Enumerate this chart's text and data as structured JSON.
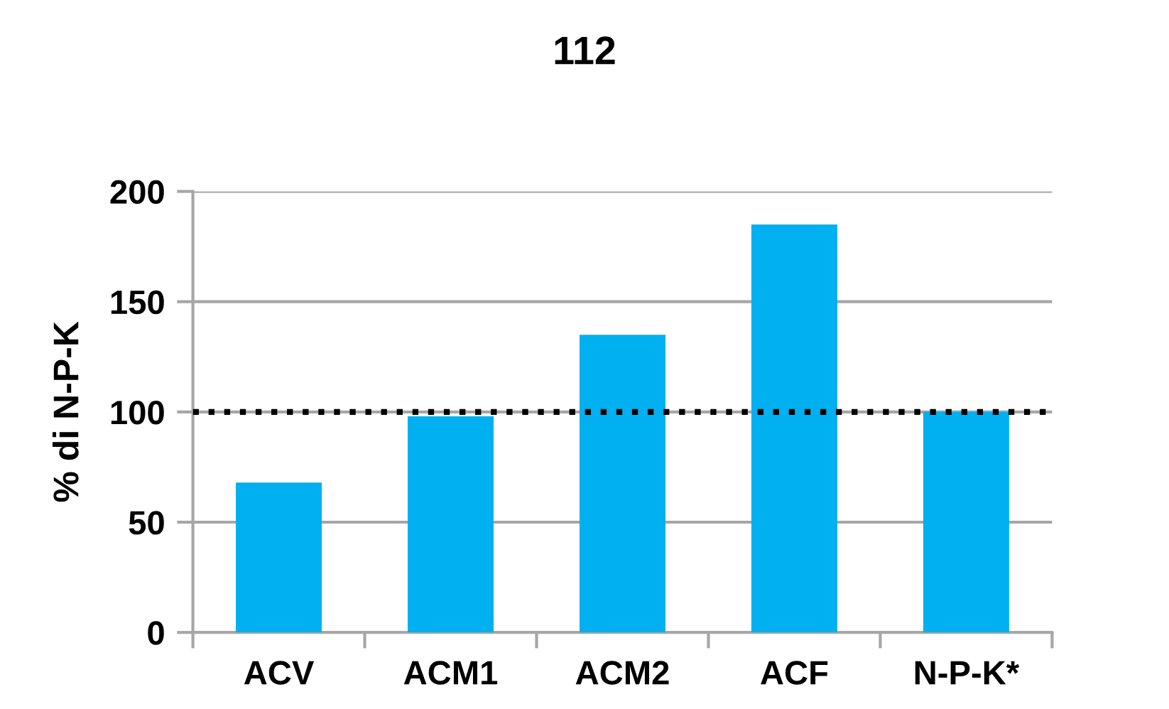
{
  "chart_data": {
    "type": "bar",
    "title": "112",
    "ylabel": "% di N-P-K",
    "categories": [
      "ACV",
      "ACM1",
      "ACM2",
      "ACF",
      "N-P-K*"
    ],
    "values": [
      68,
      98,
      135,
      185,
      100
    ],
    "color": "#00b0f0",
    "ylim": [
      0,
      200
    ],
    "yticks": [
      0,
      50,
      100,
      150,
      200
    ],
    "grid": "y",
    "ref_lines": [
      {
        "axis": "y",
        "value": 100,
        "color": "#000000",
        "line_style": "dotted"
      }
    ]
  }
}
